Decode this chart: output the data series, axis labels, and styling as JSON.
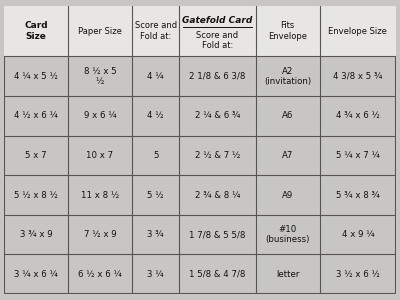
{
  "headers": [
    "Card\nSize",
    "Paper Size",
    "Score and\nFold at:",
    "Gatefold Card\nScore and\nFold at:",
    "Fits\nEnvelope",
    "Envelope Size"
  ],
  "header_bold": [
    true,
    false,
    false,
    true,
    false,
    false
  ],
  "rows": [
    [
      "4 ¼ x 5 ½",
      "8 ½ x 5\n½",
      "4 ¼",
      "2 1/8 & 6 3/8",
      "A2\n(invitation)",
      "4 3/8 x 5 ¾"
    ],
    [
      "4 ½ x 6 ¼",
      "9 x 6 ¼",
      "4 ½",
      "2 ¼ & 6 ¾",
      "A6",
      "4 ¾ x 6 ½"
    ],
    [
      "5 x 7",
      "10 x 7",
      "5",
      "2 ½ & 7 ½",
      "A7",
      "5 ¼ x 7 ¼"
    ],
    [
      "5 ½ x 8 ½",
      "11 x 8 ½",
      "5 ½",
      "2 ¾ & 8 ¼",
      "A9",
      "5 ¾ x 8 ¾"
    ],
    [
      "3 ¾ x 9",
      "7 ½ x 9",
      "3 ¾",
      "1 7/8 & 5 5/8",
      "#10\n(business)",
      "4 x 9 ¼"
    ],
    [
      "3 ¼ x 6 ¼",
      "6 ½ x 6 ¼",
      "3 ¼",
      "1 5/8 & 4 7/8",
      "letter",
      "3 ½ x 6 ½"
    ]
  ],
  "gatefold_col_index": 3,
  "bg_color": "#d8d8d8",
  "table_bg": "#f0eeea",
  "header_bg": "#e8e6e2",
  "fig_bg": "#c8c6c2"
}
